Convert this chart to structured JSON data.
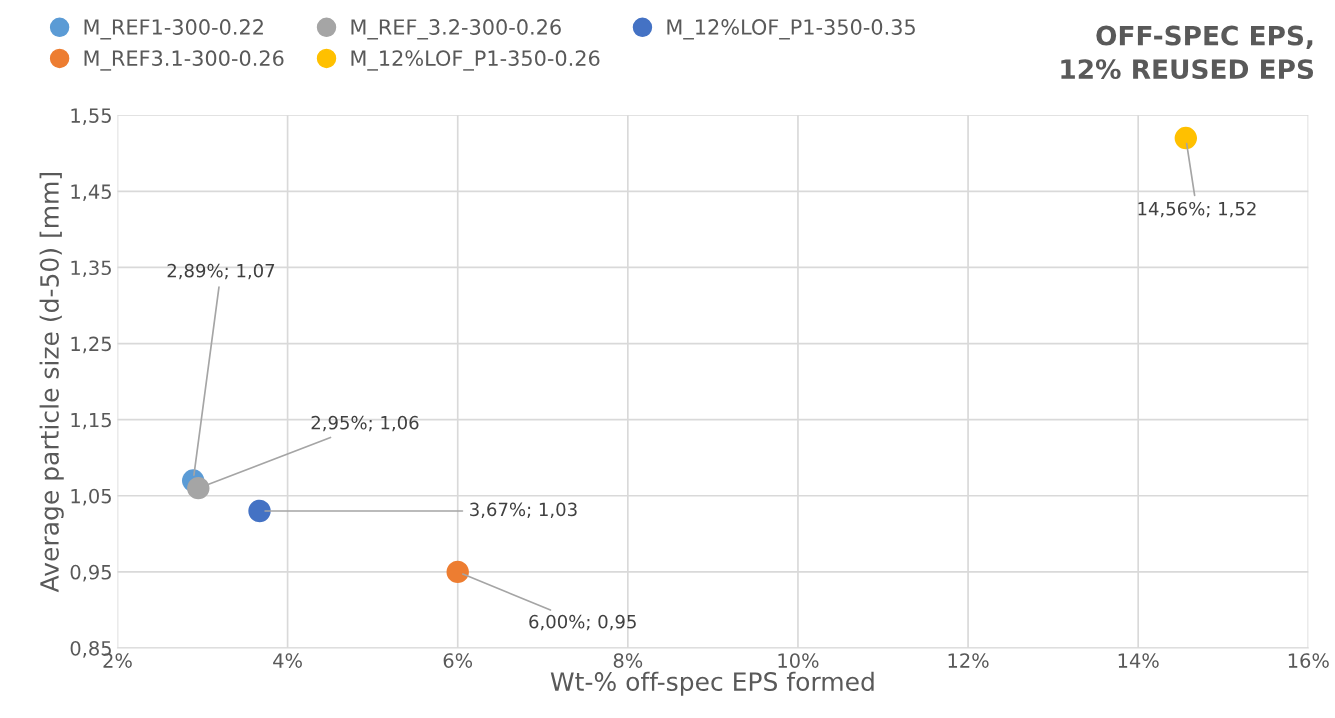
{
  "chart_data": {
    "type": "scatter",
    "title": "OFF-SPEC EPS,\n12% REUSED EPS",
    "xlabel": "Wt-% off-spec EPS formed",
    "ylabel": "Average particle size (d-50) [mm]",
    "xlim": [
      2,
      16
    ],
    "xticks": [
      {
        "value": 2,
        "label": "2%"
      },
      {
        "value": 4,
        "label": "4%"
      },
      {
        "value": 6,
        "label": "6%"
      },
      {
        "value": 8,
        "label": "8%"
      },
      {
        "value": 10,
        "label": "10%"
      },
      {
        "value": 12,
        "label": "12%"
      },
      {
        "value": 14,
        "label": "14%"
      },
      {
        "value": 16,
        "label": "16%"
      }
    ],
    "ylim": [
      0.85,
      1.55
    ],
    "yticks": [
      {
        "value": 0.85,
        "label": "0,85"
      },
      {
        "value": 0.95,
        "label": "0,95"
      },
      {
        "value": 1.05,
        "label": "1,05"
      },
      {
        "value": 1.15,
        "label": "1,15"
      },
      {
        "value": 1.25,
        "label": "1,25"
      },
      {
        "value": 1.35,
        "label": "1,35"
      },
      {
        "value": 1.45,
        "label": "1,45"
      },
      {
        "value": 1.55,
        "label": "1,55"
      }
    ],
    "grid": true,
    "legend": "top",
    "marker": "circle",
    "series": [
      {
        "name": "M_REF1-300-0.22",
        "color": "#5b9bd5",
        "x": [
          2.89
        ],
        "values": [
          1.07
        ],
        "value_labels": [
          "2,89%; 1,07"
        ]
      },
      {
        "name": "M_REF3.1-300-0.26",
        "color": "#ed7d31",
        "x": [
          6.0
        ],
        "values": [
          0.95
        ],
        "value_labels": [
          "6,00%; 0,95"
        ]
      },
      {
        "name": "M_REF_3.2-300-0.26",
        "color": "#a5a5a5",
        "x": [
          2.95
        ],
        "values": [
          1.06
        ],
        "value_labels": [
          "2,95%; 1,06"
        ]
      },
      {
        "name": "M_12%LOF_P1-350-0.26",
        "color": "#ffc000",
        "x": [
          14.56
        ],
        "values": [
          1.52
        ],
        "value_labels": [
          "14,56%; 1,52"
        ]
      },
      {
        "name": "M_12%LOF_P1-350-0.35",
        "color": "#4472c4",
        "x": [
          3.67
        ],
        "values": [
          1.03
        ],
        "value_labels": [
          "3,67%; 1,03"
        ]
      }
    ]
  }
}
